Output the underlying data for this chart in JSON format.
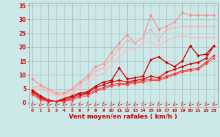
{
  "xlabel": "Vent moyen/en rafales ( km/h )",
  "xlim": [
    -0.5,
    23.5
  ],
  "ylim": [
    -1.5,
    36
  ],
  "yticks": [
    0,
    5,
    10,
    15,
    20,
    25,
    30,
    35
  ],
  "xticks": [
    0,
    1,
    2,
    3,
    4,
    5,
    6,
    7,
    8,
    9,
    10,
    11,
    12,
    13,
    14,
    15,
    16,
    17,
    18,
    19,
    20,
    21,
    22,
    23
  ],
  "bg_color": "#cce8e8",
  "grid_color": "#aabcbc",
  "x": [
    0,
    1,
    2,
    3,
    4,
    5,
    6,
    7,
    8,
    9,
    10,
    11,
    12,
    13,
    14,
    15,
    16,
    17,
    18,
    19,
    20,
    21,
    22,
    23
  ],
  "series": [
    {
      "name": "light_upper",
      "color": "#ff8888",
      "linewidth": 0.8,
      "marker": "D",
      "markersize": 2.0,
      "y": [
        8.5,
        6.5,
        5.0,
        3.5,
        3.5,
        5.0,
        7.5,
        9.5,
        13.0,
        14.0,
        18.0,
        21.5,
        24.5,
        21.5,
        23.5,
        31.5,
        26.5,
        27.5,
        29.0,
        32.5,
        31.5,
        31.5,
        31.5,
        31.5
      ]
    },
    {
      "name": "light_mid",
      "color": "#ffaaaa",
      "linewidth": 0.8,
      "marker": "D",
      "markersize": 2.0,
      "y": [
        5.5,
        6.0,
        4.5,
        3.0,
        3.0,
        4.5,
        6.5,
        8.5,
        11.5,
        12.5,
        16.0,
        19.5,
        22.5,
        21.5,
        23.5,
        26.5,
        22.5,
        26.5,
        27.0,
        27.5,
        27.5,
        27.5,
        27.5,
        27.5
      ]
    },
    {
      "name": "light_lower",
      "color": "#ffbbbb",
      "linewidth": 0.8,
      "marker": "D",
      "markersize": 2.0,
      "y": [
        4.5,
        5.0,
        3.5,
        2.5,
        2.5,
        3.5,
        5.5,
        7.0,
        9.5,
        10.5,
        13.5,
        16.5,
        19.0,
        19.5,
        21.5,
        22.0,
        20.0,
        22.5,
        23.5,
        24.0,
        23.5,
        23.5,
        23.5,
        23.5
      ]
    },
    {
      "name": "dark_upper",
      "color": "#cc0000",
      "linewidth": 1.0,
      "marker": "D",
      "markersize": 2.0,
      "y": [
        4.5,
        2.5,
        1.0,
        0.5,
        1.5,
        2.5,
        3.5,
        4.0,
        6.0,
        7.5,
        8.0,
        12.5,
        8.5,
        9.0,
        9.5,
        15.5,
        16.5,
        14.5,
        13.0,
        15.0,
        20.5,
        17.0,
        17.5,
        20.5
      ]
    },
    {
      "name": "dark_mid",
      "color": "#dd0000",
      "linewidth": 1.0,
      "marker": "D",
      "markersize": 2.0,
      "y": [
        4.0,
        2.0,
        0.5,
        0.5,
        1.0,
        2.0,
        3.0,
        3.5,
        5.5,
        6.5,
        7.5,
        8.0,
        7.5,
        8.0,
        8.5,
        9.5,
        9.0,
        11.0,
        12.0,
        13.0,
        14.0,
        14.5,
        16.0,
        20.5
      ]
    },
    {
      "name": "dark_lower1",
      "color": "#ee2222",
      "linewidth": 0.8,
      "marker": "D",
      "markersize": 1.8,
      "y": [
        3.5,
        1.5,
        0.5,
        0.5,
        0.5,
        1.5,
        2.5,
        3.0,
        4.5,
        5.5,
        6.5,
        7.0,
        7.0,
        7.5,
        8.0,
        8.5,
        8.5,
        9.5,
        10.5,
        11.5,
        12.0,
        12.5,
        14.5,
        17.0
      ]
    },
    {
      "name": "dark_lower2",
      "color": "#ff4444",
      "linewidth": 0.8,
      "marker": "D",
      "markersize": 1.8,
      "y": [
        3.0,
        1.0,
        0.5,
        0.5,
        0.5,
        1.0,
        2.0,
        2.5,
        4.0,
        5.0,
        6.0,
        6.5,
        6.5,
        7.0,
        7.5,
        8.0,
        8.0,
        9.0,
        10.0,
        11.0,
        11.5,
        12.0,
        14.0,
        16.0
      ]
    }
  ],
  "tick_color": "#cc0000",
  "label_color": "#cc0000"
}
